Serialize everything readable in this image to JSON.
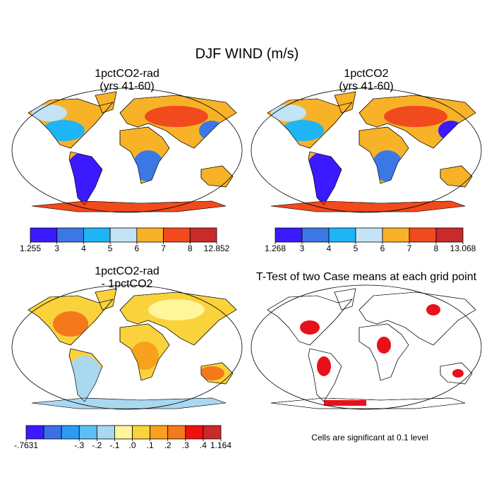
{
  "title": "DJF WIND (m/s)",
  "panels": [
    {
      "title": [
        "1pctCO2-rad",
        "(yrs 41-60)"
      ],
      "colorbar": {
        "colors": [
          "#3b1aff",
          "#3a78e6",
          "#1eb4f5",
          "#c3e4f5",
          "#f8b228",
          "#f14a1c",
          "#c92a2a"
        ],
        "ticks": [
          1.255,
          3,
          4,
          5,
          6,
          7,
          8,
          12.852
        ]
      }
    },
    {
      "title": [
        "1pctCO2",
        "(yrs 41-60)"
      ],
      "colorbar": {
        "colors": [
          "#3b1aff",
          "#3a78e6",
          "#1eb4f5",
          "#c3e4f5",
          "#f8b228",
          "#f14a1c",
          "#c92a2a"
        ],
        "ticks": [
          1.268,
          3,
          4,
          5,
          6,
          7,
          8,
          13.068
        ]
      }
    },
    {
      "title": [
        "1pctCO2-rad",
        "- 1pctCO2"
      ],
      "colorbar": {
        "colors": [
          "#3b1aff",
          "#3a6fe6",
          "#2a9cf2",
          "#5cc0f5",
          "#a9d8ef",
          "#fff59a",
          "#fad23c",
          "#f7a21e",
          "#f4781c",
          "#f01010",
          "#c92a2a"
        ],
        "ticks": [
          {
            "value": -0.7631,
            "label": "-.7631"
          },
          null,
          null,
          {
            "value": -0.3,
            "label": "-.3"
          },
          {
            "value": -0.2,
            "label": "-.2"
          },
          {
            "value": -0.1,
            "label": "-.1"
          },
          {
            "value": 0,
            "label": ".0"
          },
          {
            "value": 0.1,
            "label": ".1"
          },
          {
            "value": 0.2,
            "label": ".2"
          },
          {
            "value": 0.3,
            "label": ".3"
          },
          {
            "value": 0.4,
            "label": ".4"
          },
          1.164
        ]
      }
    },
    {
      "title": [
        "T-Test of two Case means at each grid point"
      ],
      "note": "Cells are significant at 0.1 level"
    }
  ]
}
